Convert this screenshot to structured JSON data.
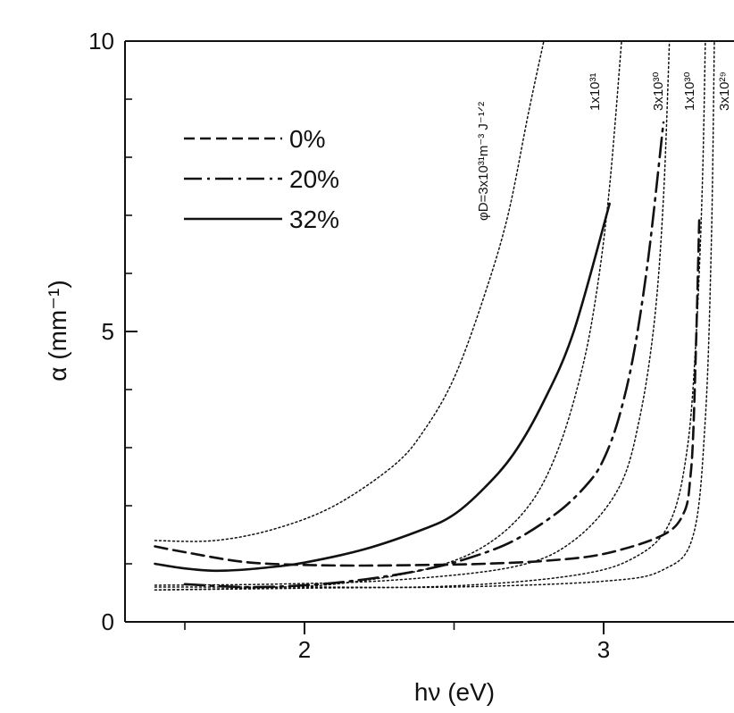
{
  "chart_data": {
    "type": "line",
    "title": "",
    "xlabel": "hν (eV)",
    "ylabel": "α (mm⁻¹)",
    "xlim": [
      1.5,
      3.42
    ],
    "ylim": [
      0,
      10
    ],
    "x_major_ticks": [
      2,
      3
    ],
    "x_minor_ticks": [
      1.6,
      2.5
    ],
    "y_major_ticks": [
      0,
      5,
      10
    ],
    "y_minor_ticks": [
      1,
      2,
      3,
      4,
      6,
      7,
      8,
      9
    ],
    "grid": false,
    "legend_position": "top-left",
    "series": [
      {
        "name": "0%",
        "style": "dashed",
        "x": [
          1.5,
          1.6,
          1.8,
          2.0,
          2.2,
          2.4,
          2.6,
          2.8,
          3.0,
          3.2,
          3.27,
          3.29,
          3.3,
          3.31,
          3.32
        ],
        "y": [
          1.3,
          1.2,
          1.03,
          0.98,
          0.97,
          0.98,
          1.0,
          1.05,
          1.17,
          1.5,
          1.9,
          2.5,
          3.3,
          5.0,
          7.0
        ]
      },
      {
        "name": "20%",
        "style": "dash-dot",
        "x": [
          1.6,
          1.8,
          2.0,
          2.2,
          2.4,
          2.55,
          2.7,
          2.85,
          2.95,
          3.0,
          3.05,
          3.1,
          3.15,
          3.2
        ],
        "y": [
          0.65,
          0.6,
          0.63,
          0.73,
          0.9,
          1.1,
          1.4,
          1.9,
          2.4,
          2.8,
          3.5,
          4.6,
          6.3,
          8.6
        ]
      },
      {
        "name": "32%",
        "style": "solid",
        "x": [
          1.5,
          1.6,
          1.7,
          1.8,
          1.9,
          2.0,
          2.2,
          2.4,
          2.5,
          2.6,
          2.7,
          2.8,
          2.9,
          3.02
        ],
        "y": [
          1.0,
          0.92,
          0.88,
          0.9,
          0.95,
          1.02,
          1.25,
          1.6,
          1.85,
          2.3,
          2.9,
          3.8,
          5.0,
          7.2
        ]
      },
      {
        "name": "φD=3x10³¹m⁻³ J⁻¹ᐟ²",
        "style": "dotted",
        "x": [
          1.5,
          1.7,
          1.9,
          2.1,
          2.3,
          2.4,
          2.5,
          2.6,
          2.68,
          2.75,
          2.8
        ],
        "y": [
          1.4,
          1.4,
          1.6,
          2.0,
          2.7,
          3.3,
          4.2,
          5.6,
          7.0,
          8.8,
          10.0
        ]
      },
      {
        "name": "1x10³¹",
        "style": "dotted",
        "x": [
          1.5,
          1.8,
          2.1,
          2.4,
          2.6,
          2.75,
          2.85,
          2.93,
          2.98,
          3.02,
          3.06
        ],
        "y": [
          0.55,
          0.58,
          0.65,
          0.9,
          1.3,
          2.0,
          3.0,
          4.4,
          5.8,
          7.5,
          10.0
        ]
      },
      {
        "name": "3x10³⁰",
        "style": "dotted",
        "x": [
          1.5,
          1.9,
          2.3,
          2.7,
          2.9,
          3.05,
          3.12,
          3.17,
          3.2,
          3.22
        ],
        "y": [
          0.63,
          0.65,
          0.72,
          0.95,
          1.4,
          2.3,
          3.5,
          5.2,
          7.3,
          10.0
        ]
      },
      {
        "name": "1x10³⁰",
        "style": "dotted",
        "x": [
          1.5,
          2.0,
          2.5,
          2.9,
          3.1,
          3.22,
          3.28,
          3.31,
          3.33,
          3.34
        ],
        "y": [
          0.55,
          0.58,
          0.62,
          0.8,
          1.1,
          1.7,
          3.0,
          5.0,
          7.5,
          10.0
        ]
      },
      {
        "name": "3x10²⁹",
        "style": "dotted",
        "x": [
          1.5,
          2.0,
          2.5,
          3.0,
          3.2,
          3.3,
          3.34,
          3.36,
          3.37
        ],
        "y": [
          0.6,
          0.6,
          0.6,
          0.7,
          0.9,
          1.5,
          3.5,
          6.5,
          10.0
        ]
      }
    ],
    "legend": [
      {
        "label": "0%",
        "style": "dashed"
      },
      {
        "label": "20%",
        "style": "dash-dot"
      },
      {
        "label": "32%",
        "style": "solid"
      }
    ],
    "curve_labels": [
      "φD=3x10³¹m⁻³ J⁻¹ᐟ²",
      "1x10³¹",
      "3x10³⁰",
      "1x10³⁰",
      "3x10²⁹"
    ]
  }
}
